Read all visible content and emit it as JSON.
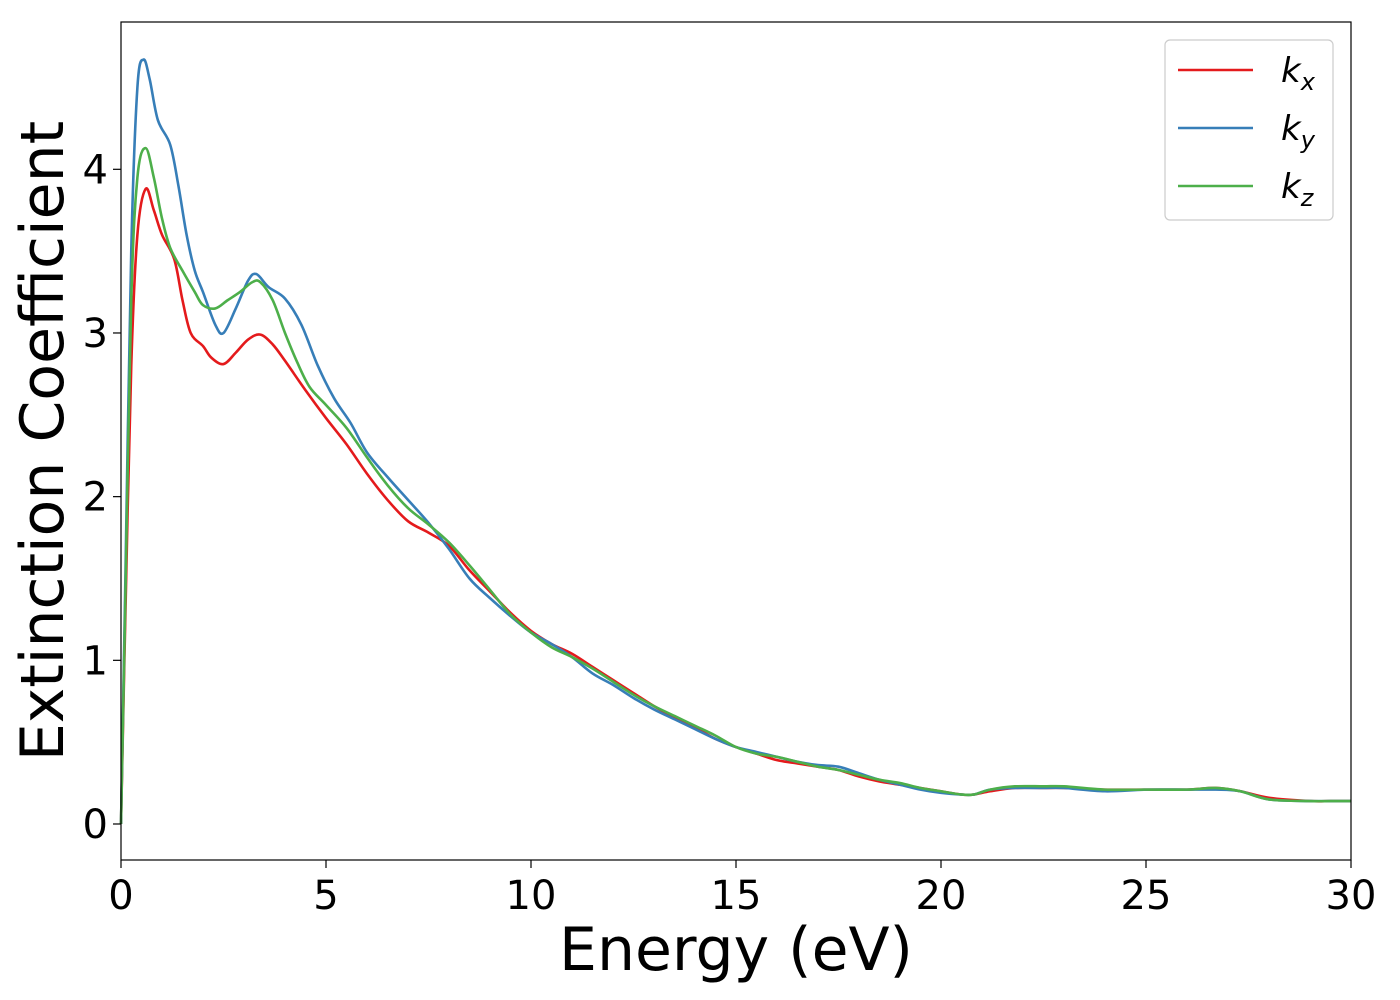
{
  "chart_data": {
    "type": "line",
    "title": "",
    "xlabel": "Energy (eV)",
    "ylabel": "Extinction Coefficient",
    "xlim": [
      0,
      30
    ],
    "ylim": [
      -0.22,
      4.9
    ],
    "xticks": [
      0,
      5,
      10,
      15,
      20,
      25,
      30
    ],
    "yticks": [
      0,
      1,
      2,
      3,
      4
    ],
    "xtick_labels": [
      "0",
      "5",
      "10",
      "15",
      "20",
      "25",
      "30"
    ],
    "ytick_labels": [
      "0",
      "1",
      "2",
      "3",
      "4"
    ],
    "grid": false,
    "legend_position": "top-right",
    "series": [
      {
        "name": "k",
        "subscript": "x",
        "color": "#e41a1c",
        "points": [
          [
            0,
            0
          ],
          [
            0.1,
            1.2
          ],
          [
            0.25,
            2.8
          ],
          [
            0.4,
            3.6
          ],
          [
            0.6,
            3.88
          ],
          [
            0.8,
            3.75
          ],
          [
            1,
            3.6
          ],
          [
            1.3,
            3.45
          ],
          [
            1.5,
            3.2
          ],
          [
            1.7,
            3.0
          ],
          [
            2,
            2.92
          ],
          [
            2.2,
            2.85
          ],
          [
            2.5,
            2.81
          ],
          [
            2.8,
            2.88
          ],
          [
            3.1,
            2.96
          ],
          [
            3.4,
            2.99
          ],
          [
            3.7,
            2.93
          ],
          [
            4,
            2.83
          ],
          [
            4.5,
            2.65
          ],
          [
            5,
            2.48
          ],
          [
            5.5,
            2.32
          ],
          [
            6,
            2.14
          ],
          [
            6.5,
            1.98
          ],
          [
            7,
            1.85
          ],
          [
            7.5,
            1.78
          ],
          [
            8,
            1.7
          ],
          [
            8.5,
            1.55
          ],
          [
            9,
            1.42
          ],
          [
            9.5,
            1.29
          ],
          [
            10,
            1.18
          ],
          [
            10.5,
            1.1
          ],
          [
            11,
            1.04
          ],
          [
            11.5,
            0.96
          ],
          [
            12,
            0.88
          ],
          [
            12.5,
            0.8
          ],
          [
            13,
            0.72
          ],
          [
            13.5,
            0.65
          ],
          [
            14,
            0.59
          ],
          [
            14.5,
            0.52
          ],
          [
            15,
            0.47
          ],
          [
            15.5,
            0.43
          ],
          [
            16,
            0.39
          ],
          [
            16.5,
            0.37
          ],
          [
            17,
            0.35
          ],
          [
            17.5,
            0.33
          ],
          [
            18,
            0.29
          ],
          [
            18.5,
            0.26
          ],
          [
            19,
            0.24
          ],
          [
            19.5,
            0.22
          ],
          [
            20,
            0.2
          ],
          [
            20.5,
            0.18
          ],
          [
            20.8,
            0.18
          ],
          [
            21.2,
            0.2
          ],
          [
            21.8,
            0.22
          ],
          [
            22.5,
            0.22
          ],
          [
            23,
            0.22
          ],
          [
            24,
            0.21
          ],
          [
            25,
            0.21
          ],
          [
            26,
            0.21
          ],
          [
            26.7,
            0.22
          ],
          [
            27.3,
            0.2
          ],
          [
            28,
            0.16
          ],
          [
            29,
            0.14
          ],
          [
            29.5,
            0.14
          ],
          [
            30,
            0.14
          ]
        ]
      },
      {
        "name": "k",
        "subscript": "y",
        "color": "#377eb8",
        "points": [
          [
            0,
            0
          ],
          [
            0.1,
            1.4
          ],
          [
            0.25,
            3.5
          ],
          [
            0.4,
            4.5
          ],
          [
            0.55,
            4.67
          ],
          [
            0.7,
            4.55
          ],
          [
            0.9,
            4.3
          ],
          [
            1.2,
            4.15
          ],
          [
            1.4,
            3.9
          ],
          [
            1.6,
            3.6
          ],
          [
            1.8,
            3.38
          ],
          [
            2,
            3.25
          ],
          [
            2.3,
            3.05
          ],
          [
            2.5,
            3.0
          ],
          [
            2.8,
            3.15
          ],
          [
            3.1,
            3.32
          ],
          [
            3.3,
            3.36
          ],
          [
            3.6,
            3.28
          ],
          [
            4,
            3.21
          ],
          [
            4.4,
            3.05
          ],
          [
            4.8,
            2.8
          ],
          [
            5.2,
            2.6
          ],
          [
            5.6,
            2.45
          ],
          [
            6,
            2.27
          ],
          [
            6.5,
            2.12
          ],
          [
            7,
            1.98
          ],
          [
            7.5,
            1.84
          ],
          [
            8,
            1.68
          ],
          [
            8.5,
            1.5
          ],
          [
            9,
            1.38
          ],
          [
            9.5,
            1.27
          ],
          [
            10,
            1.17
          ],
          [
            10.5,
            1.1
          ],
          [
            11,
            1.02
          ],
          [
            11.5,
            0.92
          ],
          [
            12,
            0.85
          ],
          [
            12.5,
            0.77
          ],
          [
            13,
            0.7
          ],
          [
            13.5,
            0.64
          ],
          [
            14,
            0.58
          ],
          [
            14.5,
            0.52
          ],
          [
            15,
            0.47
          ],
          [
            15.5,
            0.44
          ],
          [
            16,
            0.41
          ],
          [
            16.5,
            0.38
          ],
          [
            17,
            0.36
          ],
          [
            17.5,
            0.35
          ],
          [
            18,
            0.31
          ],
          [
            18.5,
            0.27
          ],
          [
            19,
            0.24
          ],
          [
            19.5,
            0.21
          ],
          [
            20,
            0.19
          ],
          [
            20.5,
            0.18
          ],
          [
            20.8,
            0.18
          ],
          [
            21.2,
            0.21
          ],
          [
            21.8,
            0.22
          ],
          [
            22.5,
            0.22
          ],
          [
            23,
            0.22
          ],
          [
            24,
            0.2
          ],
          [
            25,
            0.21
          ],
          [
            26,
            0.21
          ],
          [
            26.7,
            0.21
          ],
          [
            27.3,
            0.2
          ],
          [
            28,
            0.15
          ],
          [
            29,
            0.14
          ],
          [
            29.5,
            0.14
          ],
          [
            30,
            0.14
          ]
        ]
      },
      {
        "name": "k",
        "subscript": "z",
        "color": "#4daf4a",
        "points": [
          [
            0,
            0
          ],
          [
            0.1,
            1.3
          ],
          [
            0.25,
            3.2
          ],
          [
            0.4,
            3.95
          ],
          [
            0.6,
            4.13
          ],
          [
            0.8,
            3.95
          ],
          [
            1,
            3.7
          ],
          [
            1.2,
            3.52
          ],
          [
            1.5,
            3.38
          ],
          [
            1.8,
            3.25
          ],
          [
            2,
            3.17
          ],
          [
            2.3,
            3.15
          ],
          [
            2.6,
            3.2
          ],
          [
            2.9,
            3.25
          ],
          [
            3.2,
            3.31
          ],
          [
            3.4,
            3.31
          ],
          [
            3.7,
            3.2
          ],
          [
            4,
            3.0
          ],
          [
            4.3,
            2.82
          ],
          [
            4.6,
            2.67
          ],
          [
            5,
            2.56
          ],
          [
            5.5,
            2.42
          ],
          [
            6,
            2.24
          ],
          [
            6.5,
            2.07
          ],
          [
            7,
            1.93
          ],
          [
            7.5,
            1.83
          ],
          [
            8,
            1.72
          ],
          [
            8.5,
            1.58
          ],
          [
            9,
            1.43
          ],
          [
            9.5,
            1.28
          ],
          [
            10,
            1.17
          ],
          [
            10.5,
            1.08
          ],
          [
            11,
            1.02
          ],
          [
            11.5,
            0.95
          ],
          [
            12,
            0.87
          ],
          [
            12.5,
            0.79
          ],
          [
            13,
            0.72
          ],
          [
            13.5,
            0.66
          ],
          [
            14,
            0.6
          ],
          [
            14.5,
            0.54
          ],
          [
            15,
            0.47
          ],
          [
            15.5,
            0.43
          ],
          [
            16,
            0.41
          ],
          [
            16.5,
            0.38
          ],
          [
            17,
            0.35
          ],
          [
            17.5,
            0.33
          ],
          [
            18,
            0.3
          ],
          [
            18.5,
            0.27
          ],
          [
            19,
            0.25
          ],
          [
            19.5,
            0.22
          ],
          [
            20,
            0.2
          ],
          [
            20.5,
            0.18
          ],
          [
            20.8,
            0.18
          ],
          [
            21.2,
            0.21
          ],
          [
            21.8,
            0.23
          ],
          [
            22.5,
            0.23
          ],
          [
            23,
            0.23
          ],
          [
            24,
            0.21
          ],
          [
            25,
            0.21
          ],
          [
            26,
            0.21
          ],
          [
            26.7,
            0.22
          ],
          [
            27.3,
            0.2
          ],
          [
            28,
            0.15
          ],
          [
            29,
            0.14
          ],
          [
            29.5,
            0.14
          ],
          [
            30,
            0.14
          ]
        ]
      }
    ]
  }
}
